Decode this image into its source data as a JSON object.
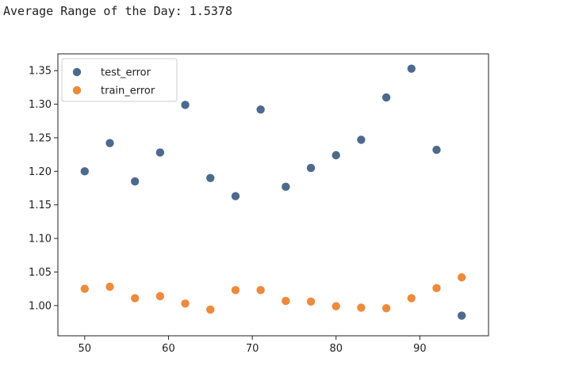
{
  "cell_output": {
    "text": "Average Range of the Day: 1.5378"
  },
  "chart_data": {
    "type": "scatter",
    "title": "",
    "xlabel": "",
    "ylabel": "",
    "x": [
      50,
      53,
      56,
      59,
      62,
      65,
      68,
      71,
      74,
      77,
      80,
      83,
      86,
      89,
      92,
      95
    ],
    "xlim": [
      46.8,
      98.2
    ],
    "ylim": [
      0.955,
      1.375
    ],
    "xticks": [
      50,
      60,
      70,
      80,
      90
    ],
    "yticks": [
      1.0,
      1.05,
      1.1,
      1.15,
      1.2,
      1.25,
      1.3,
      1.35
    ],
    "xtick_labels": [
      "50",
      "60",
      "70",
      "80",
      "90"
    ],
    "ytick_labels": [
      "1.00",
      "1.05",
      "1.10",
      "1.15",
      "1.20",
      "1.25",
      "1.30",
      "1.35"
    ],
    "grid": false,
    "legend_position": "upper-left",
    "series": [
      {
        "name": "test_error",
        "color": "#4c6a8c",
        "values": [
          1.2,
          1.242,
          1.185,
          1.228,
          1.299,
          1.19,
          1.163,
          1.292,
          1.177,
          1.205,
          1.224,
          1.247,
          1.31,
          1.353,
          1.232,
          0.985
        ]
      },
      {
        "name": "train_error",
        "color": "#ee8a3c",
        "values": [
          1.025,
          1.028,
          1.011,
          1.014,
          1.003,
          0.994,
          1.023,
          1.023,
          1.007,
          1.006,
          0.999,
          0.997,
          0.996,
          1.011,
          1.026,
          1.042
        ]
      }
    ]
  }
}
